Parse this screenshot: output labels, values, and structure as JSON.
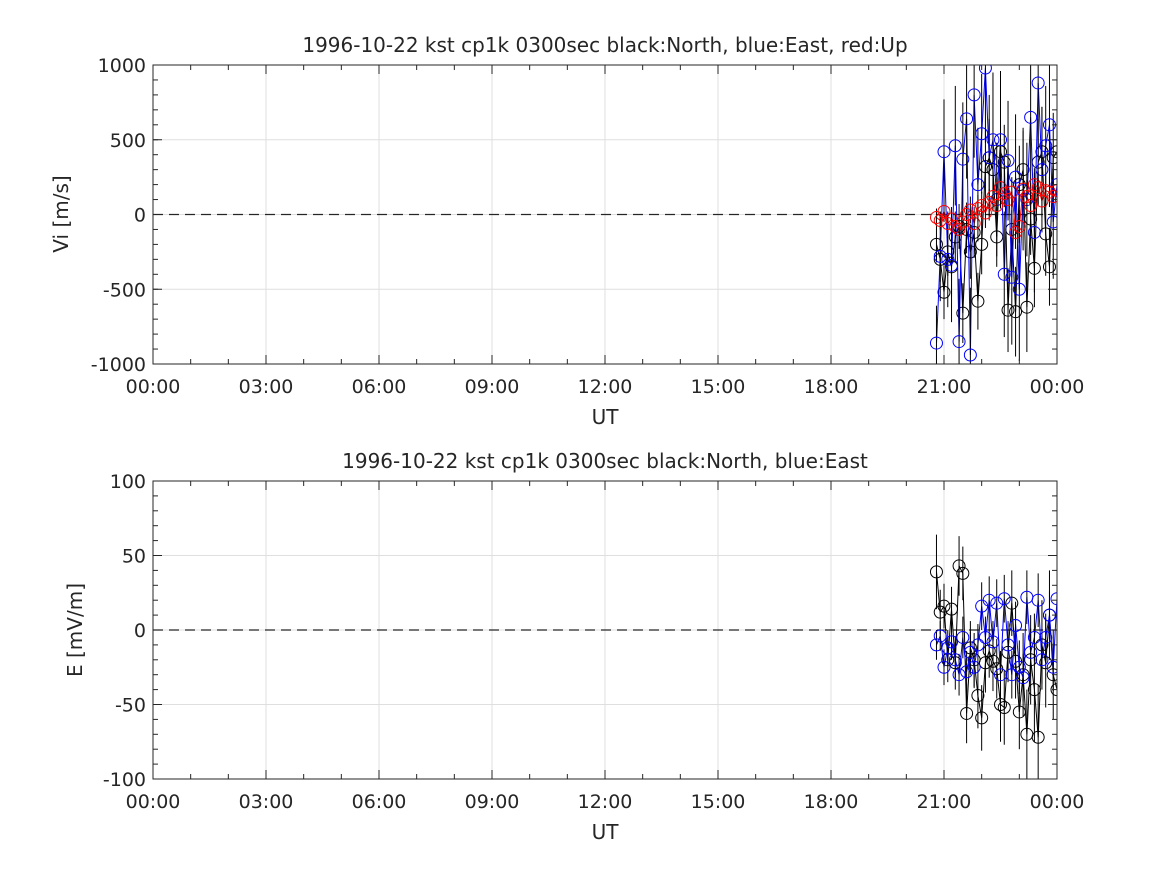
{
  "chart_data": [
    {
      "type": "scatter",
      "title": "1996-10-22 kst cp1k 0300sec black:North, blue:East, red:Up",
      "xlabel": "UT",
      "ylabel": "Vi [m/s]",
      "ylim": [
        -1000,
        1000
      ],
      "yticks": [
        "1000",
        "500",
        "0",
        "-500",
        "-1000"
      ],
      "ytick_values": [
        1000,
        500,
        0,
        -500,
        -1000
      ],
      "xlim_hours": [
        0,
        24
      ],
      "xticks": [
        "00:00",
        "03:00",
        "06:00",
        "09:00",
        "12:00",
        "15:00",
        "18:00",
        "21:00",
        "00:00"
      ],
      "xtick_hours": [
        0,
        3,
        6,
        9,
        12,
        15,
        18,
        21,
        24
      ],
      "grid": true,
      "series": [
        {
          "color": "#000000",
          "x": [
            20.8,
            20.9,
            21.0,
            21.1,
            21.2,
            21.3,
            21.4,
            21.5,
            21.6,
            21.7,
            21.8,
            21.9,
            22.0,
            22.1,
            22.2,
            22.3,
            22.4,
            22.5,
            22.6,
            22.7,
            22.8,
            22.9,
            23.0,
            23.1,
            23.2,
            23.3,
            23.4,
            23.5,
            23.6,
            23.7,
            23.8,
            23.9,
            24.0
          ],
          "y": [
            -200,
            -300,
            -520,
            -250,
            -350,
            -150,
            -80,
            -660,
            -100,
            -250,
            -120,
            -580,
            -200,
            320,
            380,
            300,
            -150,
            420,
            350,
            -640,
            -100,
            -650,
            200,
            300,
            -620,
            -30,
            -360,
            350,
            420,
            -130,
            -350,
            380,
            420
          ],
          "err": [
            120,
            150,
            180,
            160,
            200,
            170,
            150,
            200,
            160,
            180,
            170,
            190,
            200,
            250,
            260,
            230,
            200,
            260,
            250,
            280,
            220,
            300,
            260,
            280,
            300,
            240,
            260,
            290,
            300,
            280,
            260,
            300,
            320
          ]
        },
        {
          "color": "#0000ff",
          "x": [
            20.8,
            20.9,
            21.0,
            21.1,
            21.2,
            21.3,
            21.4,
            21.5,
            21.6,
            21.7,
            21.8,
            21.9,
            22.0,
            22.1,
            22.2,
            22.3,
            22.4,
            22.5,
            22.6,
            22.7,
            22.8,
            22.9,
            23.0,
            23.1,
            23.2,
            23.3,
            23.4,
            23.5,
            23.6,
            23.7,
            23.8,
            23.9,
            24.0
          ],
          "y": [
            -860,
            -280,
            420,
            -300,
            -340,
            460,
            -850,
            370,
            640,
            -940,
            800,
            200,
            540,
            980,
            380,
            500,
            100,
            500,
            -400,
            360,
            -420,
            250,
            -500,
            160,
            100,
            650,
            -120,
            880,
            300,
            460,
            600,
            -50,
            200
          ],
          "err": [
            250,
            300,
            350,
            320,
            380,
            400,
            420,
            380,
            400,
            450,
            420,
            380,
            400,
            500,
            420,
            450,
            380,
            460,
            420,
            400,
            450,
            420,
            480,
            400,
            380,
            460,
            400,
            480,
            420,
            400,
            420,
            380,
            400
          ]
        },
        {
          "color": "#ff0000",
          "x": [
            20.8,
            20.9,
            21.0,
            21.1,
            21.2,
            21.3,
            21.4,
            21.5,
            21.6,
            21.7,
            21.8,
            21.9,
            22.0,
            22.1,
            22.2,
            22.3,
            22.4,
            22.5,
            22.6,
            22.7,
            22.8,
            22.9,
            23.0,
            23.1,
            23.2,
            23.3,
            23.4,
            23.5,
            23.6,
            23.7,
            23.8,
            23.9,
            24.0
          ],
          "y": [
            -20,
            -40,
            20,
            -60,
            -30,
            -80,
            -100,
            -50,
            0,
            30,
            -60,
            40,
            60,
            10,
            80,
            120,
            60,
            180,
            140,
            100,
            150,
            -120,
            -80,
            170,
            120,
            60,
            200,
            180,
            90,
            160,
            150,
            120,
            160
          ],
          "err": [
            60,
            60,
            70,
            70,
            80,
            80,
            90,
            80,
            80,
            90,
            80,
            90,
            90,
            100,
            90,
            100,
            90,
            100,
            90,
            100,
            100,
            110,
            110,
            100,
            110,
            110,
            110,
            110,
            110,
            110,
            100,
            110,
            100
          ]
        }
      ]
    },
    {
      "type": "scatter",
      "title": "1996-10-22 kst cp1k 0300sec black:North, blue:East",
      "xlabel": "UT",
      "ylabel": "E [mV/m]",
      "ylim": [
        -100,
        100
      ],
      "yticks": [
        "100",
        "50",
        "0",
        "-50",
        "-100"
      ],
      "ytick_values": [
        100,
        50,
        0,
        -50,
        -100
      ],
      "xlim_hours": [
        0,
        24
      ],
      "xticks": [
        "00:00",
        "03:00",
        "06:00",
        "09:00",
        "12:00",
        "15:00",
        "18:00",
        "21:00",
        "00:00"
      ],
      "xtick_hours": [
        0,
        3,
        6,
        9,
        12,
        15,
        18,
        21,
        24
      ],
      "grid": true,
      "series": [
        {
          "color": "#000000",
          "x": [
            20.8,
            20.9,
            21.0,
            21.1,
            21.2,
            21.3,
            21.4,
            21.5,
            21.6,
            21.7,
            21.8,
            21.9,
            22.0,
            22.1,
            22.2,
            22.3,
            22.4,
            22.5,
            22.6,
            22.7,
            22.8,
            22.9,
            23.0,
            23.1,
            23.2,
            23.3,
            23.4,
            23.5,
            23.6,
            23.7,
            23.8,
            23.9,
            24.0
          ],
          "y": [
            39,
            12,
            16,
            -20,
            14,
            -22,
            43,
            38,
            -56,
            -12,
            -20,
            -44,
            -59,
            -22,
            -14,
            -21,
            -26,
            -50,
            -52,
            -15,
            18,
            -21,
            -55,
            -30,
            -70,
            -20,
            -40,
            -72,
            -10,
            -22,
            10,
            -30,
            -40
          ],
          "err": [
            25,
            15,
            15,
            15,
            15,
            18,
            20,
            18,
            20,
            18,
            18,
            22,
            22,
            20,
            18,
            20,
            20,
            25,
            25,
            20,
            22,
            25,
            25,
            28,
            30,
            30,
            35,
            35,
            30,
            30,
            30,
            30,
            30
          ]
        },
        {
          "color": "#0000ff",
          "x": [
            20.8,
            20.9,
            21.0,
            21.1,
            21.2,
            21.3,
            21.4,
            21.5,
            21.6,
            21.7,
            21.8,
            21.9,
            22.0,
            22.1,
            22.2,
            22.3,
            22.4,
            22.5,
            22.6,
            22.7,
            22.8,
            22.9,
            23.0,
            23.1,
            23.2,
            23.3,
            23.4,
            23.5,
            23.6,
            23.7,
            23.8,
            23.9,
            24.0
          ],
          "y": [
            -10,
            -4,
            -25,
            -12,
            -8,
            -20,
            -30,
            -5,
            -28,
            -15,
            -25,
            -10,
            16,
            -5,
            20,
            -8,
            18,
            -30,
            21,
            -10,
            -30,
            3,
            -25,
            -32,
            22,
            -15,
            -5,
            20,
            -20,
            -5,
            10,
            -25,
            21
          ],
          "err": [
            10,
            10,
            12,
            12,
            12,
            12,
            14,
            14,
            14,
            14,
            14,
            14,
            16,
            14,
            16,
            14,
            16,
            16,
            16,
            16,
            16,
            16,
            18,
            16,
            18,
            16,
            16,
            18,
            16,
            16,
            16,
            16,
            16
          ]
        }
      ]
    }
  ]
}
